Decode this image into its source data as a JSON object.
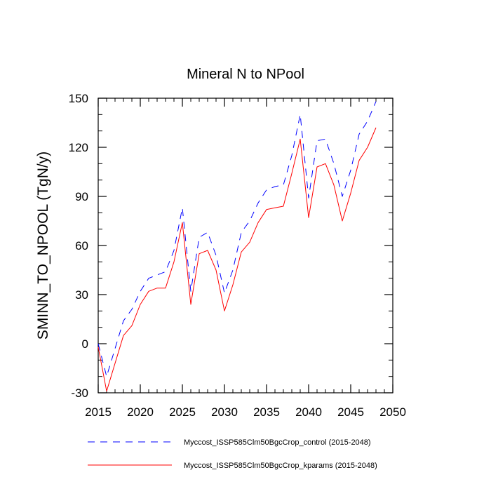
{
  "chart_data": {
    "type": "line",
    "title": "Mineral N to NPool",
    "xlabel": "",
    "ylabel": "SMINN_TO_NPOOL  (TgN/y)",
    "xlim": [
      2015,
      2050
    ],
    "ylim": [
      -30,
      150
    ],
    "xticks": [
      2015,
      2020,
      2025,
      2030,
      2035,
      2040,
      2045,
      2050
    ],
    "yticks": [
      -30,
      0,
      30,
      60,
      90,
      120,
      150
    ],
    "grid": false,
    "legend_position": "bottom",
    "series": [
      {
        "name": "Myccost_ISSP585Clm50BgcCrop_control (2015-2048)",
        "color": "#0000ff",
        "dash": "dashed",
        "x": [
          2015,
          2016,
          2017,
          2018,
          2019,
          2020,
          2021,
          2022,
          2023,
          2024,
          2025,
          2026,
          2027,
          2028,
          2029,
          2030,
          2031,
          2032,
          2033,
          2034,
          2035,
          2036,
          2037,
          2038,
          2039,
          2040,
          2041,
          2042,
          2043,
          2044,
          2045,
          2046,
          2047,
          2048
        ],
        "values": [
          0,
          -20,
          -3,
          14,
          21,
          32,
          40,
          42,
          44,
          57,
          83,
          32,
          65,
          68,
          54,
          31,
          45,
          68,
          75,
          86,
          94,
          96,
          97,
          115,
          140,
          89,
          124,
          125,
          110,
          90,
          106,
          128,
          136,
          148
        ]
      },
      {
        "name": "Myccost_ISSP585Clm50BgcCrop_kparams (2015-2048)",
        "color": "#ff0000",
        "dash": "solid",
        "x": [
          2015,
          2016,
          2017,
          2018,
          2019,
          2020,
          2021,
          2022,
          2023,
          2024,
          2025,
          2026,
          2027,
          2028,
          2029,
          2030,
          2031,
          2032,
          2033,
          2034,
          2035,
          2036,
          2037,
          2038,
          2039,
          2040,
          2041,
          2042,
          2043,
          2044,
          2045,
          2046,
          2047,
          2048
        ],
        "values": [
          -2,
          -29,
          -12,
          5,
          11,
          24,
          32,
          34,
          34,
          50,
          74,
          24,
          55,
          57,
          45,
          20,
          36,
          56,
          62,
          74,
          82,
          83,
          84,
          104,
          125,
          77,
          108,
          110,
          97,
          75,
          92,
          112,
          120,
          132
        ]
      }
    ]
  }
}
